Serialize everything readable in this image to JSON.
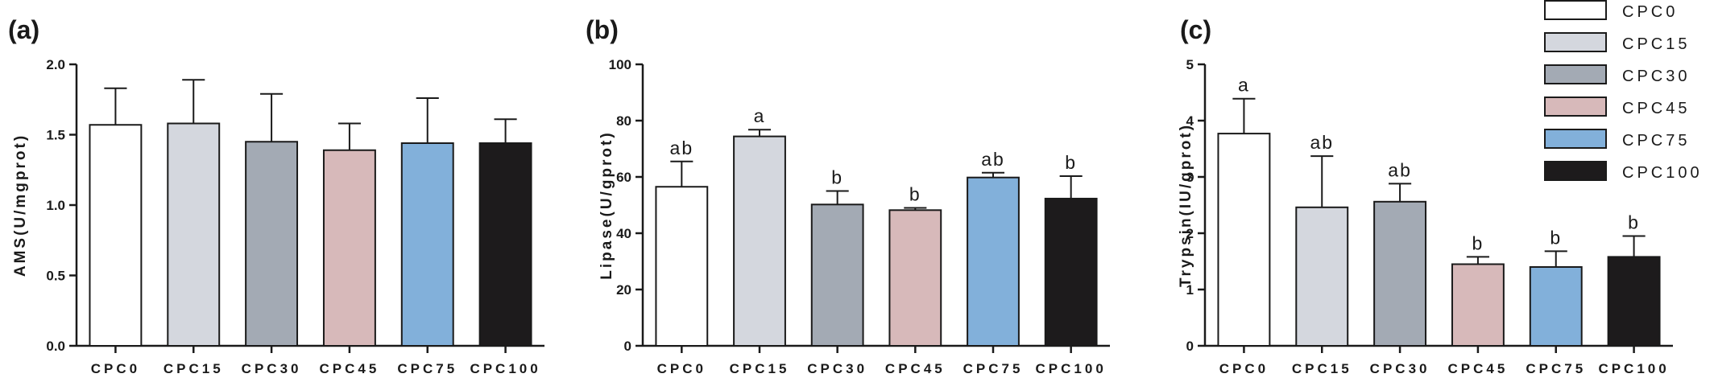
{
  "legend": {
    "placement": "top-right",
    "items": [
      {
        "label": "CPC0",
        "color": "#ffffff"
      },
      {
        "label": "CPC15",
        "color": "#d4d7de"
      },
      {
        "label": "CPC30",
        "color": "#a3aab4"
      },
      {
        "label": "CPC45",
        "color": "#d7b9ba"
      },
      {
        "label": "CPC75",
        "color": "#82b0da"
      },
      {
        "label": "CPC100",
        "color": "#1d1b1c"
      }
    ]
  },
  "chart_data": [
    {
      "type": "bar",
      "panel_label": "(a)",
      "title": "",
      "xlabel": "",
      "ylabel": "AMS(U/mgprot)",
      "categories": [
        "CPC0",
        "CPC15",
        "CPC30",
        "CPC45",
        "CPC75",
        "CPC100"
      ],
      "values": [
        1.57,
        1.58,
        1.45,
        1.39,
        1.44,
        1.44
      ],
      "errors": [
        0.26,
        0.31,
        0.34,
        0.19,
        0.32,
        0.17
      ],
      "significance": [
        "",
        "",
        "",
        "",
        "",
        ""
      ],
      "ylim": [
        0,
        2.0
      ],
      "yticks": [
        "0.0",
        "0.5",
        "1.0",
        "1.5",
        "2.0"
      ],
      "grid": false
    },
    {
      "type": "bar",
      "panel_label": "(b)",
      "title": "",
      "xlabel": "",
      "ylabel": "Lipase(U/gprot)",
      "categories": [
        "CPC0",
        "CPC15",
        "CPC30",
        "CPC45",
        "CPC75",
        "CPC100"
      ],
      "values": [
        56.5,
        74.4,
        50.2,
        48.2,
        59.8,
        52.3
      ],
      "errors": [
        9.0,
        2.4,
        4.8,
        0.8,
        1.7,
        8.0
      ],
      "significance": [
        "ab",
        "a",
        "b",
        "b",
        "ab",
        "b"
      ],
      "ylim": [
        0,
        100
      ],
      "yticks": [
        "0",
        "20",
        "40",
        "60",
        "80",
        "100"
      ],
      "grid": false
    },
    {
      "type": "bar",
      "panel_label": "(c)",
      "title": "",
      "xlabel": "",
      "ylabel": "Trypsin(IU/gprot)",
      "categories": [
        "CPC0",
        "CPC15",
        "CPC30",
        "CPC45",
        "CPC75",
        "CPC100"
      ],
      "values": [
        3.77,
        2.46,
        2.56,
        1.45,
        1.4,
        1.58
      ],
      "errors": [
        0.62,
        0.91,
        0.32,
        0.13,
        0.28,
        0.37
      ],
      "significance": [
        "a",
        "ab",
        "ab",
        "b",
        "b",
        "b"
      ],
      "ylim": [
        0,
        5
      ],
      "yticks": [
        "0",
        "1",
        "2",
        "3",
        "4",
        "5"
      ],
      "grid": false
    }
  ]
}
